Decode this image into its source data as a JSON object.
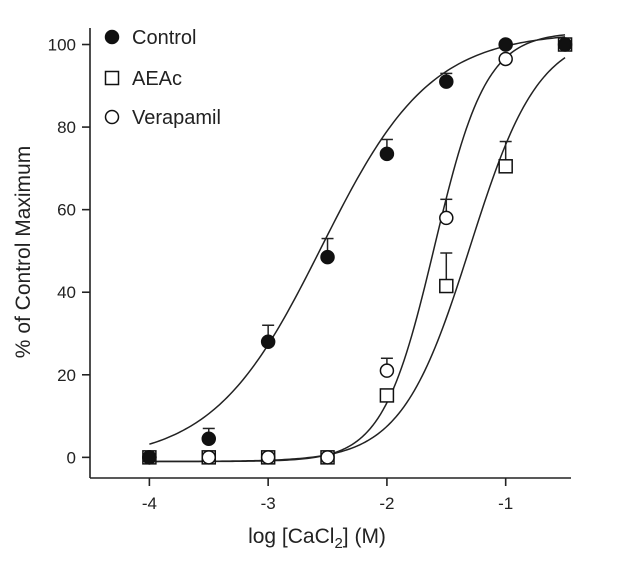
{
  "chart_data": {
    "type": "scatter",
    "xlabel_main": "log [CaCl",
    "xlabel_sub": "2",
    "xlabel_tail": "] (M)",
    "ylabel": "% of Control Maximum",
    "xlim": [
      -4.5,
      -0.45
    ],
    "ylim": [
      -5,
      104
    ],
    "x_ticks": [
      -4,
      -3,
      -2,
      -1
    ],
    "x_tick_labels": [
      "-4",
      "-3",
      "-2",
      "-1"
    ],
    "y_ticks": [
      0,
      20,
      40,
      60,
      80,
      100
    ],
    "y_tick_labels": [
      "0",
      "20",
      "40",
      "60",
      "80",
      "100"
    ],
    "legend_position": "top-left",
    "series": [
      {
        "name": "Control",
        "marker": "filled-circle",
        "x": [
          -4,
          -3.5,
          -3,
          -2.5,
          -2,
          -1.5,
          -1,
          -0.5
        ],
        "y": [
          0,
          4.5,
          28,
          48.5,
          73.5,
          91,
          100,
          100
        ],
        "err": [
          0,
          2.5,
          4,
          4.5,
          3.5,
          2,
          0,
          0
        ],
        "curve": {
          "bottom": -1,
          "top": 103,
          "logEC50": -2.55,
          "hill": 0.95
        }
      },
      {
        "name": "AEAc",
        "marker": "open-square",
        "x": [
          -4,
          -3.5,
          -3,
          -2.5,
          -2,
          -1.5,
          -1,
          -0.5
        ],
        "y": [
          0,
          0,
          0,
          0,
          15,
          41.5,
          70.5,
          100
        ],
        "err": [
          0,
          0,
          0,
          0,
          0,
          8,
          6,
          0
        ],
        "curve": {
          "bottom": -1,
          "top": 103,
          "logEC50": -1.3,
          "hill": 1.5
        }
      },
      {
        "name": "Verapamil",
        "marker": "open-circle",
        "x": [
          -4,
          -3.5,
          -3,
          -2.5,
          -2,
          -1.5,
          -1
        ],
        "y": [
          0,
          0,
          0,
          0,
          21,
          58,
          96.5
        ],
        "err": [
          0,
          0,
          0,
          0,
          3,
          4.5,
          0
        ],
        "curve": {
          "bottom": -1,
          "top": 103,
          "logEC50": -1.6,
          "hill": 2.0
        }
      }
    ]
  }
}
